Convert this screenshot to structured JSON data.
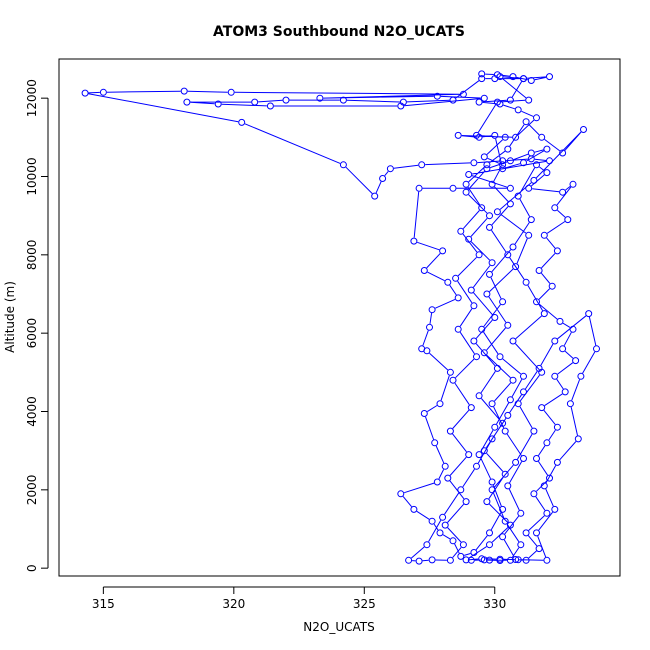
{
  "chart_data": {
    "type": "line",
    "title": "ATOM3 Southbound N2O_UCATS",
    "xlabel": "N2O_UCATS",
    "ylabel": "Altitude (m)",
    "xlim": [
      313.3,
      334.8
    ],
    "ylim": [
      -200,
      13000
    ],
    "x_ticks": [
      315,
      320,
      325,
      330
    ],
    "y_ticks": [
      0,
      2000,
      4000,
      6000,
      8000,
      10000,
      12000
    ],
    "grid": false,
    "series": [
      {
        "color": "#0000ff",
        "marker": "open-circle",
        "points": [
          [
            329.1,
            200
          ],
          [
            329.6,
            210
          ],
          [
            330.2,
            195
          ],
          [
            329.8,
            205
          ],
          [
            330.6,
            200
          ],
          [
            331.0,
            600
          ],
          [
            330.4,
            1200
          ],
          [
            329.9,
            2000
          ],
          [
            330.8,
            2700
          ],
          [
            331.5,
            3500
          ],
          [
            330.9,
            4200
          ],
          [
            331.8,
            5000
          ],
          [
            330.7,
            5800
          ],
          [
            331.9,
            6500
          ],
          [
            331.2,
            7300
          ],
          [
            330.5,
            8000
          ],
          [
            329.8,
            8700
          ],
          [
            330.6,
            9300
          ],
          [
            329.9,
            9800
          ],
          [
            330.3,
            10300
          ],
          [
            329.6,
            10500
          ],
          [
            330.4,
            11000
          ],
          [
            329.3,
            11050
          ],
          [
            330.1,
            11900
          ],
          [
            331.3,
            11950
          ],
          [
            330.2,
            12550
          ],
          [
            331.1,
            12500
          ],
          [
            330.0,
            12500
          ],
          [
            329.5,
            12500
          ],
          [
            328.4,
            11950
          ],
          [
            326.5,
            11900
          ],
          [
            324.2,
            11950
          ],
          [
            322.0,
            11950
          ],
          [
            320.8,
            11900
          ],
          [
            318.2,
            11900
          ],
          [
            319.4,
            11850
          ],
          [
            321.4,
            11800
          ],
          [
            326.4,
            11800
          ],
          [
            329.6,
            12000
          ],
          [
            327.8,
            12050
          ],
          [
            323.3,
            12000
          ],
          [
            328.8,
            12100
          ],
          [
            319.9,
            12150
          ],
          [
            318.1,
            12180
          ],
          [
            315.0,
            12150
          ],
          [
            314.3,
            12130
          ],
          [
            320.3,
            11380
          ],
          [
            324.2,
            10300
          ],
          [
            325.4,
            9500
          ],
          [
            325.7,
            9950
          ],
          [
            326.0,
            10200
          ],
          [
            327.2,
            10300
          ],
          [
            329.2,
            10350
          ],
          [
            330.3,
            10400
          ],
          [
            331.4,
            10450
          ],
          [
            332.1,
            10400
          ],
          [
            329.0,
            10050
          ],
          [
            330.6,
            9700
          ],
          [
            328.4,
            9700
          ],
          [
            327.1,
            9700
          ],
          [
            326.9,
            8350
          ],
          [
            328.0,
            8100
          ],
          [
            327.3,
            7600
          ],
          [
            328.2,
            7300
          ],
          [
            328.6,
            6900
          ],
          [
            327.6,
            6600
          ],
          [
            327.5,
            6150
          ],
          [
            327.2,
            5600
          ],
          [
            327.4,
            5550
          ],
          [
            328.3,
            5000
          ],
          [
            327.9,
            4200
          ],
          [
            327.3,
            3950
          ],
          [
            327.7,
            3200
          ],
          [
            328.1,
            2600
          ],
          [
            327.8,
            2200
          ],
          [
            326.4,
            1900
          ],
          [
            326.9,
            1500
          ],
          [
            327.6,
            1200
          ],
          [
            327.9,
            900
          ],
          [
            328.4,
            700
          ],
          [
            328.7,
            300
          ],
          [
            329.2,
            400
          ],
          [
            329.8,
            900
          ],
          [
            330.3,
            1500
          ],
          [
            329.9,
            2200
          ],
          [
            329.4,
            2900
          ],
          [
            330.0,
            3600
          ],
          [
            330.6,
            4300
          ],
          [
            331.1,
            4900
          ],
          [
            330.2,
            5400
          ],
          [
            329.5,
            6100
          ],
          [
            330.3,
            6800
          ],
          [
            329.8,
            7500
          ],
          [
            330.7,
            8200
          ],
          [
            331.4,
            8900
          ],
          [
            330.9,
            9500
          ],
          [
            331.6,
            10300
          ],
          [
            332.0,
            10100
          ],
          [
            331.3,
            9700
          ],
          [
            332.6,
            9600
          ],
          [
            333.0,
            9800
          ],
          [
            332.3,
            9200
          ],
          [
            332.8,
            8900
          ],
          [
            331.9,
            8500
          ],
          [
            332.4,
            8100
          ],
          [
            331.7,
            7600
          ],
          [
            332.2,
            7200
          ],
          [
            331.6,
            6800
          ],
          [
            332.5,
            6300
          ],
          [
            333.0,
            6100
          ],
          [
            332.6,
            5600
          ],
          [
            333.1,
            5300
          ],
          [
            332.3,
            4900
          ],
          [
            332.7,
            4500
          ],
          [
            331.8,
            4100
          ],
          [
            332.4,
            3600
          ],
          [
            332.0,
            3200
          ],
          [
            331.6,
            2800
          ],
          [
            332.1,
            2300
          ],
          [
            331.5,
            1900
          ],
          [
            332.0,
            1400
          ],
          [
            331.2,
            900
          ],
          [
            331.7,
            500
          ],
          [
            331.2,
            200
          ],
          [
            330.8,
            220
          ],
          [
            330.3,
            800
          ],
          [
            331.0,
            1400
          ],
          [
            330.5,
            2100
          ],
          [
            331.1,
            2800
          ],
          [
            330.4,
            3500
          ],
          [
            329.9,
            4200
          ],
          [
            330.7,
            4800
          ],
          [
            329.6,
            5500
          ],
          [
            330.5,
            6200
          ],
          [
            329.7,
            7000
          ],
          [
            330.8,
            7700
          ],
          [
            331.3,
            8500
          ],
          [
            330.1,
            9100
          ],
          [
            331.5,
            9900
          ],
          [
            333.4,
            11200
          ],
          [
            332.6,
            10600
          ],
          [
            331.8,
            11000
          ],
          [
            331.2,
            11400
          ],
          [
            330.5,
            10700
          ],
          [
            329.7,
            10300
          ],
          [
            328.9,
            9800
          ],
          [
            329.5,
            9200
          ],
          [
            328.7,
            8600
          ],
          [
            329.4,
            8000
          ],
          [
            328.5,
            7400
          ],
          [
            329.2,
            6700
          ],
          [
            328.6,
            6100
          ],
          [
            329.3,
            5400
          ],
          [
            328.4,
            4800
          ],
          [
            329.1,
            4100
          ],
          [
            328.3,
            3500
          ],
          [
            329.0,
            2900
          ],
          [
            328.2,
            2300
          ],
          [
            328.9,
            1700
          ],
          [
            328.1,
            1100
          ],
          [
            328.8,
            600
          ],
          [
            328.3,
            200
          ],
          [
            327.6,
            210
          ],
          [
            327.1,
            180
          ],
          [
            326.7,
            200
          ],
          [
            327.4,
            600
          ],
          [
            328.0,
            1300
          ],
          [
            328.7,
            2000
          ],
          [
            329.3,
            2600
          ],
          [
            329.9,
            3300
          ],
          [
            330.5,
            3900
          ],
          [
            331.1,
            4500
          ],
          [
            331.7,
            5100
          ],
          [
            332.3,
            5800
          ],
          [
            333.6,
            6500
          ],
          [
            333.9,
            5600
          ],
          [
            333.3,
            4900
          ],
          [
            332.9,
            4200
          ],
          [
            333.2,
            3300
          ],
          [
            332.4,
            2700
          ],
          [
            331.9,
            2100
          ],
          [
            332.3,
            1500
          ],
          [
            331.6,
            900
          ],
          [
            332.0,
            200
          ],
          [
            330.9,
            215
          ],
          [
            330.2,
            230
          ],
          [
            329.5,
            240
          ],
          [
            328.9,
            210
          ],
          [
            329.8,
            600
          ],
          [
            330.6,
            1100
          ],
          [
            329.7,
            1700
          ],
          [
            330.4,
            2400
          ],
          [
            329.6,
            3000
          ],
          [
            330.3,
            3700
          ],
          [
            329.4,
            4400
          ],
          [
            330.1,
            5100
          ],
          [
            329.2,
            5800
          ],
          [
            330.0,
            6400
          ],
          [
            329.1,
            7100
          ],
          [
            329.9,
            7800
          ],
          [
            329.0,
            8400
          ],
          [
            329.8,
            9000
          ],
          [
            328.9,
            9600
          ],
          [
            329.7,
            10200
          ],
          [
            330.6,
            10400
          ],
          [
            331.4,
            10600
          ],
          [
            332.0,
            10700
          ],
          [
            331.1,
            10350
          ],
          [
            330.3,
            10200
          ],
          [
            330.0,
            11050
          ],
          [
            329.4,
            11000
          ],
          [
            328.6,
            11050
          ],
          [
            330.8,
            11000
          ],
          [
            331.6,
            11500
          ],
          [
            330.9,
            11700
          ],
          [
            330.2,
            11850
          ],
          [
            329.4,
            11900
          ],
          [
            330.6,
            11950
          ],
          [
            331.1,
            12500
          ],
          [
            332.1,
            12550
          ],
          [
            331.4,
            12450
          ],
          [
            330.7,
            12550
          ],
          [
            330.1,
            12600
          ],
          [
            329.5,
            12620
          ]
        ]
      }
    ]
  }
}
